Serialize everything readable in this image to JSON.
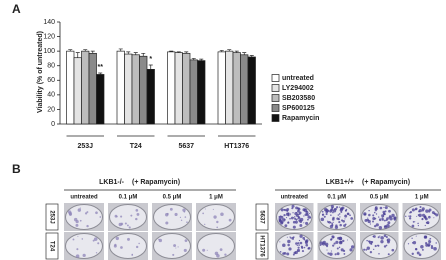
{
  "panel_a": {
    "label": "A"
  },
  "chart_data": {
    "type": "bar",
    "ylabel": "Viability (% of untreated)",
    "categories": [
      "253J",
      "T24",
      "5637",
      "HT1376"
    ],
    "series": [
      {
        "name": "untreated",
        "color": "#ffffff",
        "values": [
          100,
          100,
          99,
          99
        ],
        "errors": [
          2,
          3,
          1,
          2
        ]
      },
      {
        "name": "LY294002",
        "color": "#e4e4e4",
        "values": [
          91,
          96,
          98,
          100
        ],
        "errors": [
          7,
          3,
          1,
          2
        ]
      },
      {
        "name": "SB203580",
        "color": "#bdbdbd",
        "values": [
          100,
          95,
          97,
          98
        ],
        "errors": [
          2,
          3,
          2,
          2
        ]
      },
      {
        "name": "SP600125",
        "color": "#8a8a8a",
        "values": [
          97,
          93,
          88,
          95
        ],
        "errors": [
          3,
          4,
          2,
          3
        ]
      },
      {
        "name": "Rapamycin",
        "color": "#111111",
        "values": [
          68,
          75,
          87,
          92
        ],
        "errors": [
          2,
          6,
          2,
          2
        ]
      }
    ],
    "annotations": [
      "**",
      "*",
      null,
      null
    ],
    "ylim": [
      0,
      140
    ],
    "yticks": [
      0,
      20,
      40,
      60,
      80,
      100,
      120,
      140
    ],
    "legend": "right"
  },
  "panel_b": {
    "label": "B",
    "left": {
      "genotype": "LKB1-/-",
      "treatment": "(+ Rapamycin)",
      "columns": [
        "untreated",
        "0.1 μM",
        "0.5 μM",
        "1 μM"
      ],
      "rows": [
        "253J",
        "T24"
      ]
    },
    "right": {
      "genotype": "LKB1+/+",
      "treatment": "(+ Rapamycin)",
      "columns": [
        "untreated",
        "0.1 μM",
        "0.5 μM",
        "1 μM"
      ],
      "rows": [
        "5637",
        "HT1376"
      ]
    }
  }
}
